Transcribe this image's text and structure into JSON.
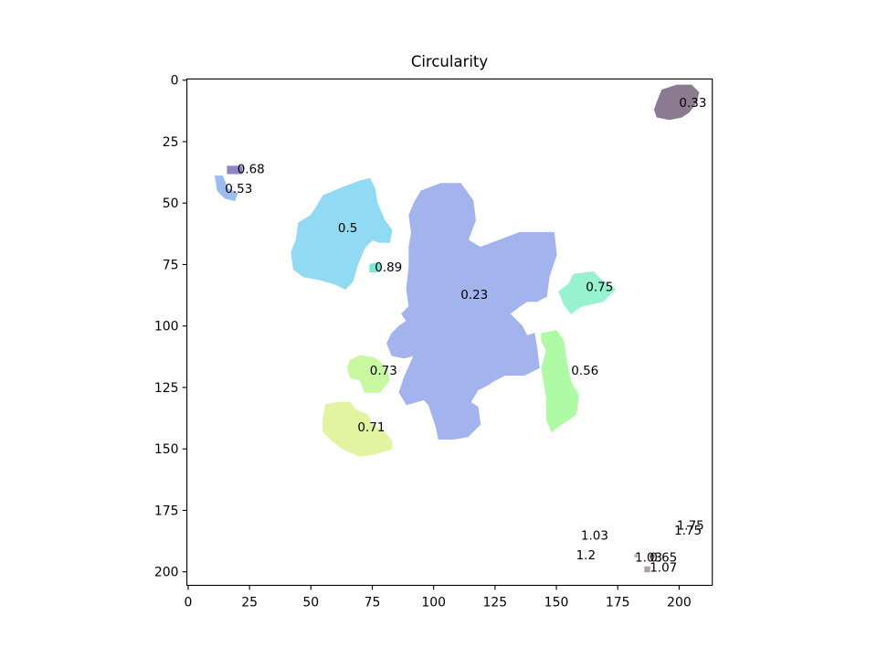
{
  "chart_data": {
    "type": "heatmap",
    "title": "Circularity",
    "xlabel": "",
    "ylabel": "",
    "xlim": [
      0,
      214
    ],
    "ylim": [
      205,
      0
    ],
    "y_inverted": true,
    "grid": false,
    "x_ticks": [
      0,
      25,
      50,
      75,
      100,
      125,
      150,
      175,
      200
    ],
    "y_ticks": [
      0,
      25,
      50,
      75,
      100,
      125,
      150,
      175,
      200
    ],
    "regions": [
      {
        "label": "0.33",
        "color": "#8c7a91",
        "cx": 200,
        "cy": 9,
        "outline": [
          [
            193,
            4
          ],
          [
            199,
            2
          ],
          [
            205,
            2
          ],
          [
            208,
            5
          ],
          [
            207,
            9
          ],
          [
            204,
            13
          ],
          [
            201,
            15
          ],
          [
            196,
            16
          ],
          [
            191,
            15
          ],
          [
            190,
            12
          ],
          [
            191,
            9
          ]
        ]
      },
      {
        "label": "0.68",
        "color": "#8c86c4",
        "cx": 20,
        "cy": 36,
        "outline": [
          [
            16,
            35
          ],
          [
            22,
            35
          ],
          [
            22,
            38
          ],
          [
            16,
            38
          ]
        ]
      },
      {
        "label": "0.53",
        "color": "#9bbcf1",
        "cx": 15,
        "cy": 44,
        "outline": [
          [
            11,
            39
          ],
          [
            14,
            39
          ],
          [
            16,
            44
          ],
          [
            20,
            46
          ],
          [
            19,
            49
          ],
          [
            15,
            48
          ],
          [
            12,
            45
          ]
        ]
      },
      {
        "label": "0.5",
        "color": "#90dbf3",
        "cx": 61,
        "cy": 60,
        "outline": [
          [
            55,
            47
          ],
          [
            62,
            44
          ],
          [
            70,
            41
          ],
          [
            74,
            40
          ],
          [
            76,
            44
          ],
          [
            77,
            50
          ],
          [
            80,
            57
          ],
          [
            83,
            61
          ],
          [
            82,
            66
          ],
          [
            78,
            66
          ],
          [
            75,
            65
          ],
          [
            72,
            68
          ],
          [
            69,
            75
          ],
          [
            67,
            82
          ],
          [
            64,
            85
          ],
          [
            60,
            83
          ],
          [
            53,
            81
          ],
          [
            47,
            80
          ],
          [
            43,
            77
          ],
          [
            42,
            70
          ],
          [
            44,
            65
          ],
          [
            45,
            58
          ],
          [
            50,
            55
          ],
          [
            52,
            52
          ]
        ]
      },
      {
        "label": "0.89",
        "color": "#7ee6d4",
        "cx": 76,
        "cy": 76,
        "outline": [
          [
            74,
            75
          ],
          [
            78,
            74
          ],
          [
            78,
            78
          ],
          [
            74,
            78
          ]
        ]
      },
      {
        "label": "0.23",
        "color": "#a3b3ee",
        "cx": 111,
        "cy": 87,
        "outline": [
          [
            95,
            45
          ],
          [
            103,
            42
          ],
          [
            111,
            42
          ],
          [
            116,
            49
          ],
          [
            117,
            57
          ],
          [
            114,
            65
          ],
          [
            119,
            68
          ],
          [
            127,
            65
          ],
          [
            135,
            62
          ],
          [
            149,
            62
          ],
          [
            150,
            71
          ],
          [
            147,
            80
          ],
          [
            146,
            88
          ],
          [
            142,
            90
          ],
          [
            138,
            90
          ],
          [
            135,
            92
          ],
          [
            131,
            95
          ],
          [
            136,
            100
          ],
          [
            138,
            104
          ],
          [
            141,
            103
          ],
          [
            142,
            109
          ],
          [
            143,
            117
          ],
          [
            137,
            120
          ],
          [
            129,
            120
          ],
          [
            125,
            122
          ],
          [
            122,
            124
          ],
          [
            118,
            126
          ],
          [
            115,
            131
          ],
          [
            118,
            133
          ],
          [
            119,
            140
          ],
          [
            114,
            145
          ],
          [
            108,
            146
          ],
          [
            102,
            146
          ],
          [
            101,
            141
          ],
          [
            98,
            132
          ],
          [
            96,
            130
          ],
          [
            89,
            132
          ],
          [
            86,
            127
          ],
          [
            88,
            121
          ],
          [
            92,
            112
          ],
          [
            88,
            113
          ],
          [
            83,
            112
          ],
          [
            81,
            107
          ],
          [
            83,
            103
          ],
          [
            86,
            100
          ],
          [
            89,
            98
          ],
          [
            87,
            95
          ],
          [
            90,
            92
          ],
          [
            89,
            85
          ],
          [
            90,
            76
          ],
          [
            90,
            68
          ],
          [
            91,
            62
          ],
          [
            90,
            55
          ],
          [
            92,
            50
          ]
        ]
      },
      {
        "label": "0.75",
        "color": "#97f2cf",
        "cx": 162,
        "cy": 84,
        "outline": [
          [
            157,
            79
          ],
          [
            165,
            78
          ],
          [
            168,
            81
          ],
          [
            174,
            85
          ],
          [
            169,
            90
          ],
          [
            160,
            92
          ],
          [
            156,
            95
          ],
          [
            153,
            91
          ],
          [
            151,
            86
          ],
          [
            155,
            83
          ]
        ]
      },
      {
        "label": "0.56",
        "color": "#aefaa5",
        "cx": 156,
        "cy": 118,
        "outline": [
          [
            144,
            103
          ],
          [
            150,
            102
          ],
          [
            153,
            106
          ],
          [
            154,
            114
          ],
          [
            156,
            123
          ],
          [
            159,
            128
          ],
          [
            158,
            136
          ],
          [
            152,
            140
          ],
          [
            148,
            143
          ],
          [
            146,
            138
          ],
          [
            146,
            129
          ],
          [
            144,
            117
          ],
          [
            146,
            110
          ],
          [
            144,
            106
          ]
        ]
      },
      {
        "label": "0.73",
        "color": "#c8f9a1",
        "cx": 74,
        "cy": 118,
        "outline": [
          [
            66,
            114
          ],
          [
            70,
            112
          ],
          [
            76,
            113
          ],
          [
            81,
            117
          ],
          [
            82,
            122
          ],
          [
            78,
            127
          ],
          [
            72,
            127
          ],
          [
            70,
            122
          ],
          [
            66,
            121
          ],
          [
            65,
            117
          ]
        ]
      },
      {
        "label": "0.71",
        "color": "#e2f49f",
        "cx": 69,
        "cy": 141,
        "outline": [
          [
            56,
            132
          ],
          [
            62,
            131
          ],
          [
            66,
            131
          ],
          [
            68,
            134
          ],
          [
            73,
            136
          ],
          [
            75,
            140
          ],
          [
            80,
            143
          ],
          [
            83,
            147
          ],
          [
            83,
            150
          ],
          [
            76,
            152
          ],
          [
            70,
            153
          ],
          [
            63,
            150
          ],
          [
            59,
            147
          ],
          [
            55,
            143
          ],
          [
            55,
            138
          ]
        ]
      },
      {
        "label": "1.75",
        "color": "#d9d9d9",
        "cx": 199,
        "cy": 181,
        "outline": []
      },
      {
        "label": "1.75",
        "color": "#d9d9d9",
        "cx": 198,
        "cy": 183,
        "outline": []
      },
      {
        "label": "1.03",
        "color": "#d9d9d9",
        "cx": 160,
        "cy": 185,
        "outline": []
      },
      {
        "label": "1.03",
        "color": "#c7b0b0",
        "cx": 182,
        "cy": 194,
        "outline": [
          [
            182,
            193
          ],
          [
            183,
            193
          ],
          [
            183,
            194
          ],
          [
            182,
            194
          ]
        ]
      },
      {
        "label": "0.65",
        "color": "#c7b0b0",
        "cx": 188,
        "cy": 194,
        "outline": [
          [
            188,
            193
          ],
          [
            190,
            193
          ],
          [
            190,
            194
          ],
          [
            188,
            194
          ]
        ]
      },
      {
        "label": "1.2",
        "color": "#d9d9d9",
        "cx": 158,
        "cy": 193,
        "outline": []
      },
      {
        "label": "1.07",
        "color": "#b5a0a0",
        "cx": 188,
        "cy": 198,
        "outline": [
          [
            186,
            198
          ],
          [
            188,
            198
          ],
          [
            188,
            200
          ],
          [
            186,
            200
          ]
        ]
      }
    ]
  }
}
